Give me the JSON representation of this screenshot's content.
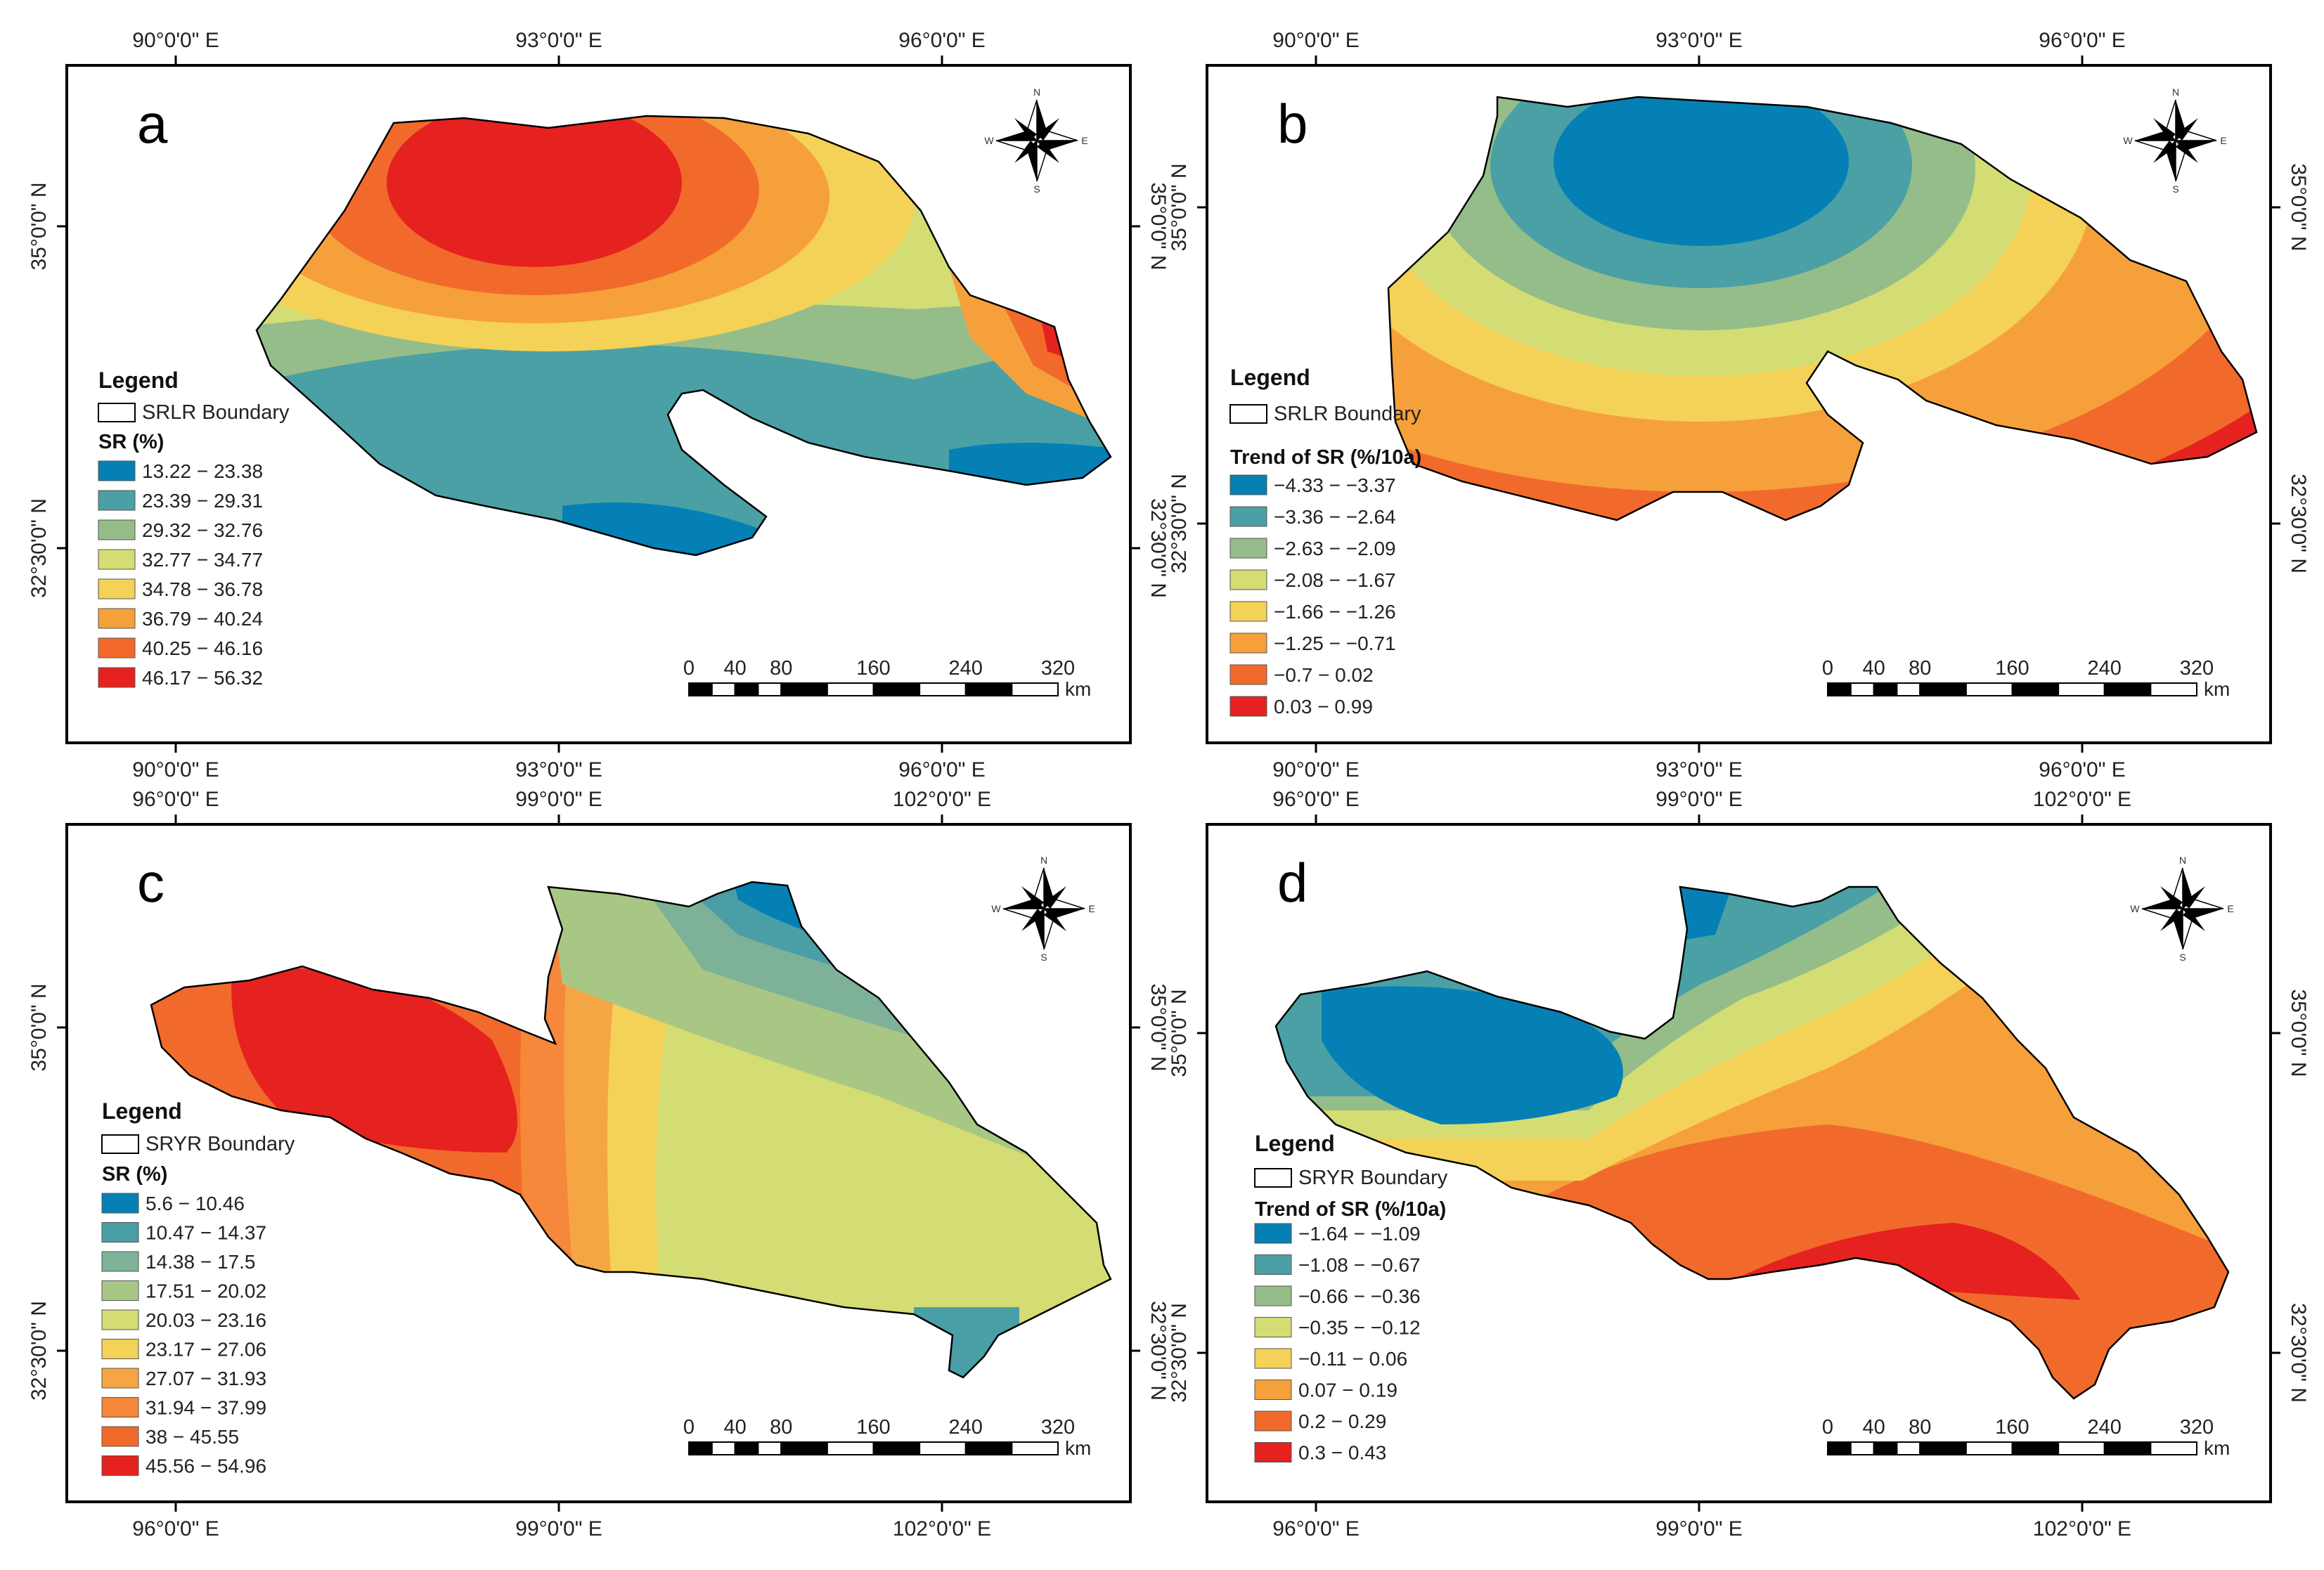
{
  "panels": [
    {
      "letter": "a",
      "top_ticks": [
        "90°0'0\" E",
        "93°0'0\" E",
        "96°0'0\" E"
      ],
      "bottom_ticks": [
        "90°0'0\" E",
        "93°0'0\" E",
        "96°0'0\" E"
      ],
      "left_ticks": [
        "35°0'0\" N",
        "32°30'0\" N"
      ],
      "right_ticks": [
        "35°0'0\" N",
        "32°30'0\" N"
      ],
      "legend_title": "Legend",
      "boundary_label": "SRLR Boundary",
      "class_title": "SR (%)",
      "classes": [
        {
          "label": "13.22 − 23.38",
          "color": "#0580b4"
        },
        {
          "label": "23.39 − 29.31",
          "color": "#4aa0a4"
        },
        {
          "label": "29.32 − 32.76",
          "color": "#94bd8a"
        },
        {
          "label": "32.77 − 34.77",
          "color": "#d4dc74"
        },
        {
          "label": "34.78 − 36.78",
          "color": "#f4d157"
        },
        {
          "label": "36.79 − 40.24",
          "color": "#f6a03b"
        },
        {
          "label": "40.25 − 46.16",
          "color": "#f26a2b"
        },
        {
          "label": "46.17 − 56.32",
          "color": "#e5221f"
        }
      ],
      "scale_labels": [
        "0",
        "40",
        "80",
        "160",
        "240",
        "320"
      ],
      "scale_unit": "km"
    },
    {
      "letter": "b",
      "top_ticks": [
        "90°0'0\" E",
        "93°0'0\" E",
        "96°0'0\" E"
      ],
      "bottom_ticks": [
        "90°0'0\" E",
        "93°0'0\" E",
        "96°0'0\" E"
      ],
      "left_ticks": [
        "35°0'0\" N",
        "32°30'0\" N"
      ],
      "right_ticks": [
        "35°0'0\" N",
        "32°30'0\" N"
      ],
      "legend_title": "Legend",
      "boundary_label": "SRLR Boundary",
      "class_title": "Trend of SR (%/10a)",
      "classes": [
        {
          "label": "−4.33 − −3.37",
          "color": "#0580b4"
        },
        {
          "label": "−3.36 − −2.64",
          "color": "#4aa0a4"
        },
        {
          "label": "−2.63 − −2.09",
          "color": "#94bd8a"
        },
        {
          "label": "−2.08 − −1.67",
          "color": "#d4dc74"
        },
        {
          "label": "−1.66 − −1.26",
          "color": "#f4d157"
        },
        {
          "label": "−1.25 − −0.71",
          "color": "#f6a03b"
        },
        {
          "label": "−0.7 − 0.02",
          "color": "#f26a2b"
        },
        {
          "label": "0.03 − 0.99",
          "color": "#e5221f"
        }
      ],
      "scale_labels": [
        "0",
        "40",
        "80",
        "160",
        "240",
        "320"
      ],
      "scale_unit": "km"
    },
    {
      "letter": "c",
      "top_ticks": [
        "96°0'0\" E",
        "99°0'0\" E",
        "102°0'0\" E"
      ],
      "bottom_ticks": [
        "96°0'0\" E",
        "99°0'0\" E",
        "102°0'0\" E"
      ],
      "left_ticks": [
        "35°0'0\" N",
        "32°30'0\" N"
      ],
      "right_ticks": [
        "35°0'0\" N",
        "32°30'0\" N"
      ],
      "legend_title": "Legend",
      "boundary_label": "SRYR Boundary",
      "class_title": "SR (%)",
      "classes": [
        {
          "label": "5.6 − 10.46",
          "color": "#0580b4"
        },
        {
          "label": "10.47 − 14.37",
          "color": "#4a9ea6"
        },
        {
          "label": "14.38 − 17.5",
          "color": "#7eb298"
        },
        {
          "label": "17.51 − 20.02",
          "color": "#a9c784"
        },
        {
          "label": "20.03 − 23.16",
          "color": "#d4dc74"
        },
        {
          "label": "23.17 − 27.06",
          "color": "#f4d157"
        },
        {
          "label": "27.07 − 31.93",
          "color": "#f6a545"
        },
        {
          "label": "31.94 − 37.99",
          "color": "#f5883a"
        },
        {
          "label": "38 − 45.55",
          "color": "#f26a2b"
        },
        {
          "label": "45.56 − 54.96",
          "color": "#e5221f"
        }
      ],
      "scale_labels": [
        "0",
        "40",
        "80",
        "160",
        "240",
        "320"
      ],
      "scale_unit": "km"
    },
    {
      "letter": "d",
      "top_ticks": [
        "96°0'0\" E",
        "99°0'0\" E",
        "102°0'0\" E"
      ],
      "bottom_ticks": [
        "96°0'0\" E",
        "99°0'0\" E",
        "102°0'0\" E"
      ],
      "left_ticks": [
        "35°0'0\" N",
        "32°30'0\" N"
      ],
      "right_ticks": [
        "35°0'0\" N",
        "32°30'0\" N"
      ],
      "legend_title": "Legend",
      "boundary_label": "SRYR Boundary",
      "class_title": "Trend of SR (%/10a)",
      "classes": [
        {
          "label": "−1.64 − −1.09",
          "color": "#0580b4"
        },
        {
          "label": "−1.08 − −0.67",
          "color": "#4aa0a4"
        },
        {
          "label": "−0.66 − −0.36",
          "color": "#94bd8a"
        },
        {
          "label": "−0.35 − −0.12",
          "color": "#d4dc74"
        },
        {
          "label": "−0.11 − 0.06",
          "color": "#f4d157"
        },
        {
          "label": "0.07 − 0.19",
          "color": "#f6a03b"
        },
        {
          "label": "0.2 − 0.29",
          "color": "#f26a2b"
        },
        {
          "label": "0.3 − 0.43",
          "color": "#e5221f"
        }
      ],
      "scale_labels": [
        "0",
        "40",
        "80",
        "160",
        "240",
        "320"
      ],
      "scale_unit": "km"
    }
  ],
  "compass": {
    "n": "N",
    "s": "S",
    "e": "E",
    "w": "W"
  }
}
